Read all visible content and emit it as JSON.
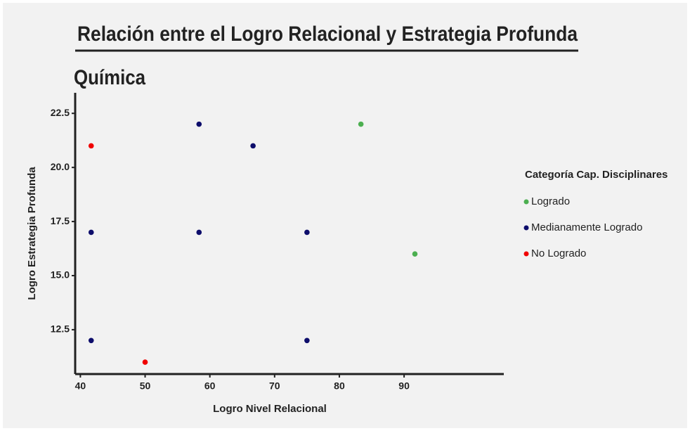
{
  "chart_data": {
    "type": "scatter",
    "title": "Relación entre el Logro Relacional y Estrategia Profunda",
    "subtitle": "Química",
    "x_label": "Logro Nivel Relacional",
    "y_label": "Logro Estrategia Profunda",
    "legend_title": "Categoría Cap. Disciplinares",
    "xlim": [
      39.2,
      105.4
    ],
    "xticks": [
      40,
      50,
      60,
      70,
      80,
      90
    ],
    "ylim": [
      10.45,
      23.45
    ],
    "yticks": [
      {
        "value": 12.5,
        "label": "12.5"
      },
      {
        "value": 15,
        "label": "15.0"
      },
      {
        "value": 17.5,
        "label": "17.5"
      },
      {
        "value": 20,
        "label": "20.0"
      },
      {
        "value": 22.5,
        "label": "22.5"
      }
    ],
    "series": [
      {
        "name": "Logrado",
        "color": "#4caf50",
        "x": [
          83.33,
          91.67
        ],
        "values": [
          22,
          16
        ]
      },
      {
        "name": "Medianamente Logrado",
        "color": "#0d0d6b",
        "x": [
          58.33,
          66.67,
          41.67,
          58.33,
          75,
          41.67,
          75
        ],
        "values": [
          22,
          21,
          17,
          17,
          17,
          12,
          12
        ]
      },
      {
        "name": "No Logrado",
        "color": "#f00000",
        "x": [
          41.67,
          50
        ],
        "values": [
          21,
          11
        ]
      }
    ]
  }
}
